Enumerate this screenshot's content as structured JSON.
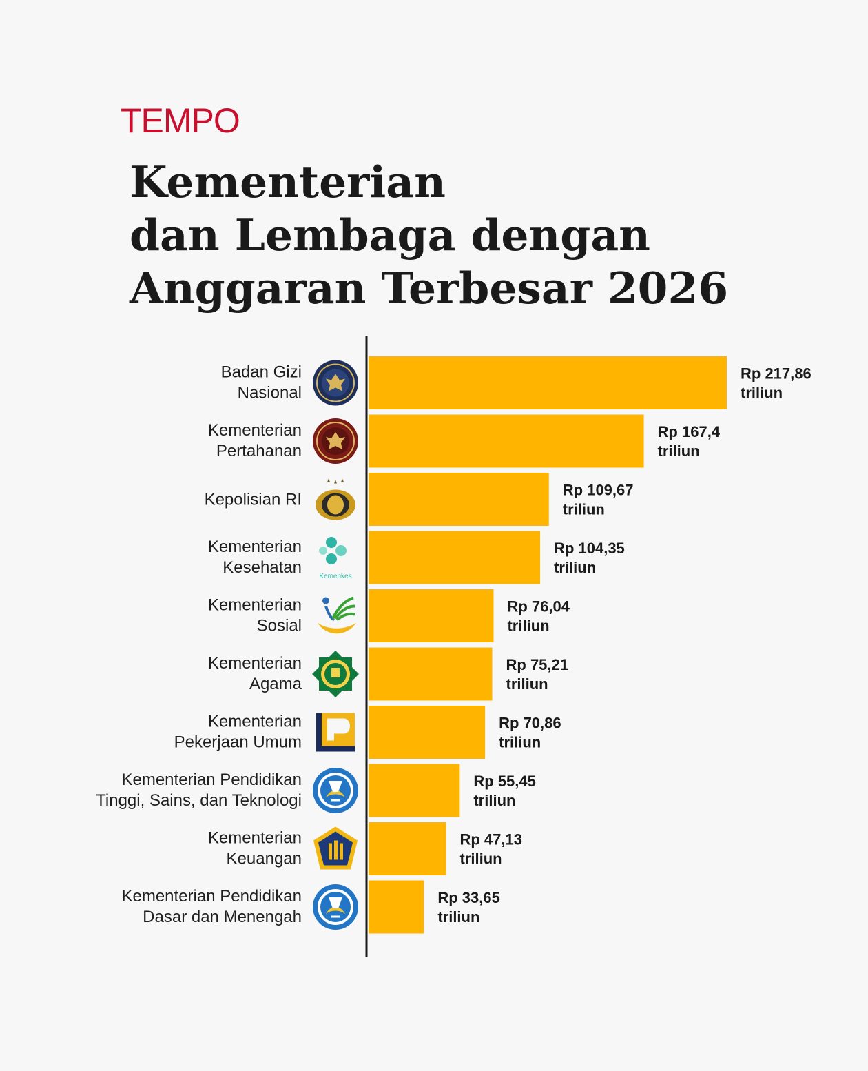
{
  "header": {
    "brand": "TEMPO",
    "title_lines": [
      "Kementerian",
      "dan Lembaga dengan",
      "Anggaran Terbesar 2026"
    ]
  },
  "colors": {
    "bar": "#FFB400",
    "brand": "#C8102E",
    "axis": "#1a1a1a",
    "background": "#F7F7F7"
  },
  "chart_data": {
    "type": "bar",
    "orientation": "horizontal",
    "title": "Kementerian dan Lembaga dengan Anggaran Terbesar 2026",
    "xlabel": "",
    "ylabel": "",
    "xlim": [
      0,
      217.86
    ],
    "grid": false,
    "categories": [
      [
        "Badan Gizi",
        "Nasional"
      ],
      [
        "Kementerian",
        "Pertahanan"
      ],
      [
        "Kepolisian RI"
      ],
      [
        "Kementerian",
        "Kesehatan"
      ],
      [
        "Kementerian",
        "Sosial"
      ],
      [
        "Kementerian",
        "Agama"
      ],
      [
        "Kementerian",
        "Pekerjaan Umum"
      ],
      [
        "Kementerian Pendidikan",
        "Tinggi, Sains, dan Teknologi"
      ],
      [
        "Kementerian",
        "Keuangan"
      ],
      [
        "Kementerian Pendidikan",
        "Dasar dan Menengah"
      ]
    ],
    "values": [
      217.86,
      167.4,
      109.67,
      104.35,
      76.04,
      75.21,
      70.86,
      55.45,
      47.13,
      33.65
    ],
    "value_labels": [
      [
        "Rp 217,86",
        "triliun"
      ],
      [
        "Rp 167,4",
        "triliun"
      ],
      [
        "Rp 109,67",
        "triliun"
      ],
      [
        "Rp 104,35",
        "triliun"
      ],
      [
        "Rp 76,04",
        "triliun"
      ],
      [
        "Rp 75,21",
        "triliun"
      ],
      [
        "Rp 70,86",
        "triliun"
      ],
      [
        "Rp 55,45",
        "triliun"
      ],
      [
        "Rp 47,13",
        "triliun"
      ],
      [
        "Rp 33,65",
        "triliun"
      ]
    ],
    "logo_text": "Kemenkes",
    "icons": [
      "badan-gizi-nasional-logo-icon",
      "kementerian-pertahanan-logo-icon",
      "kepolisian-ri-logo-icon",
      "kementerian-kesehatan-logo-icon",
      "kementerian-sosial-logo-icon",
      "kementerian-agama-logo-icon",
      "kementerian-pekerjaan-umum-logo-icon",
      "kemendiktisaintek-logo-icon",
      "kementerian-keuangan-logo-icon",
      "kemendikdasmen-logo-icon"
    ]
  }
}
